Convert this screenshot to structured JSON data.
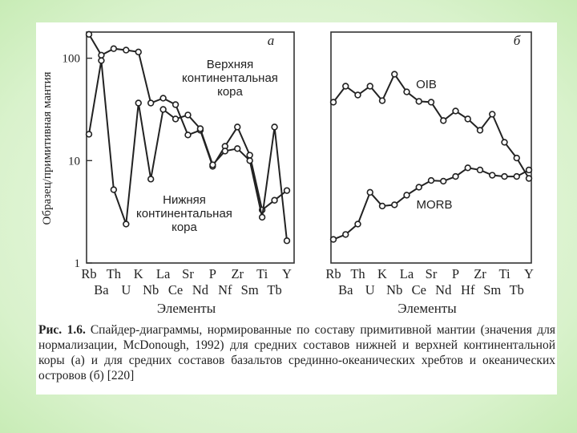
{
  "chart_data": [
    {
      "type": "line",
      "panel_label": "а",
      "y_label": "Образец/примитивная мантия",
      "x_label": "Элементы",
      "log_scale": true,
      "ylim": [
        1,
        180
      ],
      "yticks": [
        1,
        10,
        100
      ],
      "categories": [
        "Rb",
        "Ba",
        "Th",
        "U",
        "K",
        "Nb",
        "La",
        "Ce",
        "Sr",
        "Nd",
        "P",
        "Nf",
        "Zr",
        "Sm",
        "Ti",
        "Tb",
        "Y"
      ],
      "series": [
        {
          "name": "Верхняя континентальная кора",
          "color": "#222222",
          "values": [
            171,
            107,
            124,
            120,
            115,
            36.5,
            40.7,
            35.2,
            17.8,
            19.8,
            8.8,
            13.8,
            21.3,
            11.3,
            3.3,
            4.1,
            5.1
          ]
        },
        {
          "name": "Нижняя континентальная кора",
          "color": "#222222",
          "values": [
            18.1,
            94.8,
            5.2,
            2.4,
            36.5,
            6.6,
            31.6,
            25.5,
            27.9,
            20.5,
            9.1,
            12.4,
            13.1,
            10,
            2.8,
            21.3,
            1.65
          ]
        }
      ]
    },
    {
      "type": "line",
      "panel_label": "б",
      "x_label": "Элементы",
      "log_scale": true,
      "ylim": [
        1,
        180
      ],
      "categories": [
        "Rb",
        "Ba",
        "Th",
        "U",
        "K",
        "Nb",
        "La",
        "Ce",
        "Sr",
        "Nd",
        "P",
        "Hf",
        "Zr",
        "Sm",
        "Ti",
        "Tb",
        "Y"
      ],
      "series": [
        {
          "name": "OIB",
          "color": "#222222",
          "values": [
            37.2,
            53.3,
            43.7,
            53.3,
            38.5,
            69.8,
            46.9,
            37.9,
            37.2,
            24.6,
            30.5,
            25.5,
            19.8,
            28.4,
            15.1,
            10.6,
            6.7
          ]
        },
        {
          "name": "MORB",
          "color": "#222222",
          "values": [
            1.7,
            1.9,
            2.4,
            4.9,
            3.6,
            3.7,
            4.6,
            5.5,
            6.4,
            6.3,
            7.0,
            8.5,
            8.1,
            7.2,
            7.0,
            7.0,
            8.1
          ]
        }
      ]
    }
  ],
  "caption": {
    "label": "Рис. 1.6.",
    "text": "Спайдер-диаграммы, нормированные по составу примитивной мантии (значения для нормализации, McDonough, 1992) для средних составов нижней и верхней континентальной коры (а) и для средних составов базальтов срединно-океанических хребтов и океанических островов (б) [220]"
  }
}
